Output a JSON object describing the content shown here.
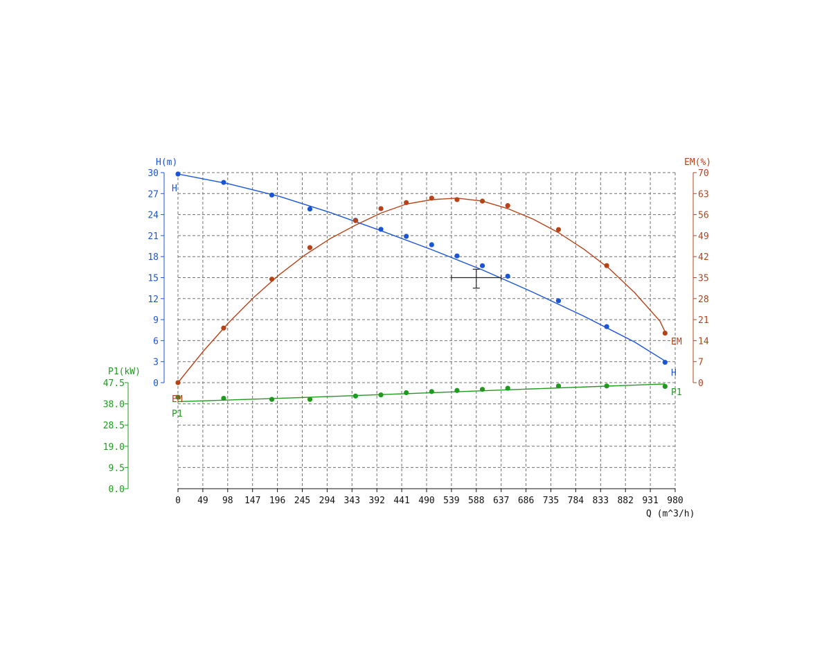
{
  "chart_data": {
    "type": "line",
    "x_axis": {
      "label": "Q (m^3/h)",
      "range": [
        0,
        980
      ],
      "ticks": [
        "0",
        "49",
        "98",
        "147",
        "196",
        "245",
        "294",
        "343",
        "392",
        "441",
        "490",
        "539",
        "588",
        "637",
        "686",
        "735",
        "784",
        "833",
        "882",
        "931",
        "980"
      ]
    },
    "y_axes": {
      "H": {
        "label": "H(m)",
        "range": [
          0,
          30
        ],
        "ticks": [
          "0",
          "3",
          "6",
          "9",
          "12",
          "15",
          "18",
          "21",
          "24",
          "27",
          "30"
        ],
        "color": "#1a55d6"
      },
      "EM": {
        "label": "EM(%)",
        "range": [
          0,
          70
        ],
        "ticks": [
          "0",
          "7",
          "14",
          "21",
          "28",
          "35",
          "42",
          "49",
          "56",
          "63",
          "70"
        ],
        "color": "#b84218"
      },
      "P1": {
        "label": "P1(kW)",
        "range": [
          0,
          47.5
        ],
        "ticks": [
          "0.0",
          "9.5",
          "19.0",
          "28.5",
          "38.0",
          "47.5"
        ],
        "color": "#1f9a1f"
      }
    },
    "grid": true,
    "series": [
      {
        "name": "H",
        "axis": "H",
        "color": "#1a55d6",
        "points": [
          [
            0,
            29.8
          ],
          [
            90,
            28.6
          ],
          [
            185,
            26.8
          ],
          [
            260,
            24.8
          ],
          [
            350,
            23.2
          ],
          [
            400,
            21.9
          ],
          [
            450,
            20.9
          ],
          [
            500,
            19.7
          ],
          [
            550,
            18.1
          ],
          [
            600,
            16.7
          ],
          [
            650,
            15.2
          ],
          [
            750,
            11.7
          ],
          [
            845,
            8.0
          ],
          [
            960,
            2.9
          ]
        ],
        "fit": [
          [
            0,
            29.8
          ],
          [
            100,
            28.4
          ],
          [
            200,
            26.6
          ],
          [
            300,
            24.3
          ],
          [
            400,
            21.7
          ],
          [
            500,
            19.0
          ],
          [
            600,
            16.1
          ],
          [
            700,
            12.9
          ],
          [
            800,
            9.5
          ],
          [
            900,
            5.8
          ],
          [
            960,
            3.1
          ]
        ]
      },
      {
        "name": "EM",
        "axis": "EM",
        "color": "#b84218",
        "points": [
          [
            0,
            0
          ],
          [
            90,
            18.2
          ],
          [
            185,
            34.5
          ],
          [
            260,
            45.0
          ],
          [
            350,
            54.0
          ],
          [
            400,
            58.0
          ],
          [
            450,
            60.0
          ],
          [
            500,
            61.5
          ],
          [
            550,
            61.0
          ],
          [
            600,
            60.5
          ],
          [
            650,
            59.0
          ],
          [
            750,
            51.0
          ],
          [
            845,
            39.0
          ],
          [
            960,
            16.5
          ]
        ],
        "fit": [
          [
            0,
            0
          ],
          [
            50,
            10.5
          ],
          [
            100,
            20.0
          ],
          [
            150,
            28.5
          ],
          [
            200,
            36.0
          ],
          [
            250,
            42.5
          ],
          [
            300,
            48.0
          ],
          [
            350,
            52.5
          ],
          [
            400,
            56.5
          ],
          [
            450,
            59.5
          ],
          [
            500,
            61.0
          ],
          [
            550,
            61.5
          ],
          [
            600,
            60.5
          ],
          [
            650,
            58.0
          ],
          [
            700,
            54.5
          ],
          [
            750,
            50.0
          ],
          [
            800,
            44.5
          ],
          [
            850,
            38.0
          ],
          [
            900,
            30.0
          ],
          [
            950,
            20.5
          ],
          [
            960,
            17.0
          ]
        ]
      },
      {
        "name": "P1",
        "axis": "P1",
        "color": "#1f9a1f",
        "points": [
          [
            0,
            41.0
          ],
          [
            90,
            40.5
          ],
          [
            185,
            40.0
          ],
          [
            260,
            40.0
          ],
          [
            350,
            41.5
          ],
          [
            400,
            42.0
          ],
          [
            450,
            43.0
          ],
          [
            500,
            43.5
          ],
          [
            550,
            44.0
          ],
          [
            600,
            44.5
          ],
          [
            650,
            45.0
          ],
          [
            750,
            46.0
          ],
          [
            845,
            46.0
          ],
          [
            960,
            45.8
          ]
        ],
        "fit": [
          [
            0,
            39.0
          ],
          [
            240,
            40.8
          ],
          [
            480,
            42.8
          ],
          [
            720,
            44.9
          ],
          [
            960,
            46.9
          ]
        ]
      }
    ],
    "series_labels": {
      "H": "H",
      "EM": "EM",
      "P1": "P1"
    },
    "duty_point": {
      "q": 588,
      "h": 15,
      "q_range": [
        539,
        637
      ],
      "h_range": [
        13.5,
        16.2
      ]
    }
  }
}
